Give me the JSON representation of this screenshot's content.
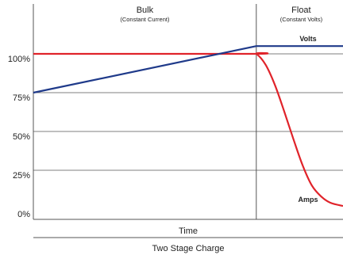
{
  "chart_data": {
    "type": "line",
    "title": "Two Stage Charge",
    "xlabel": "Time",
    "ylabel": "",
    "ylim": [
      0,
      125
    ],
    "xlim": [
      0,
      10
    ],
    "y_ticks": [
      {
        "value": 0,
        "label": "0%"
      },
      {
        "value": 25,
        "label": "25%"
      },
      {
        "value": 50,
        "label": "50%"
      },
      {
        "value": 75,
        "label": "75%"
      },
      {
        "value": 100,
        "label": "100%"
      }
    ],
    "phases": [
      {
        "label": "Bulk",
        "sublabel": "(Constant Current)",
        "x_start": 0,
        "x_end": 7.2
      },
      {
        "label": "Float",
        "sublabel": "(Constant Volts)",
        "x_start": 7.2,
        "x_end": 10
      }
    ],
    "series": [
      {
        "name": "Volts",
        "color": "#1f3a8a",
        "points": [
          [
            0,
            75
          ],
          [
            7.2,
            105
          ],
          [
            10,
            105
          ]
        ]
      },
      {
        "name": "Amps",
        "color": "#e0232a",
        "points": [
          [
            0,
            100
          ],
          [
            7.0,
            100
          ],
          [
            7.2,
            100
          ],
          [
            7.5,
            93
          ],
          [
            7.8,
            80
          ],
          [
            8.1,
            63
          ],
          [
            8.4,
            45
          ],
          [
            8.7,
            28
          ],
          [
            9.0,
            15
          ],
          [
            9.3,
            8
          ],
          [
            9.6,
            4
          ],
          [
            10,
            2
          ]
        ]
      }
    ],
    "grid": true,
    "legend": "inline labels"
  }
}
